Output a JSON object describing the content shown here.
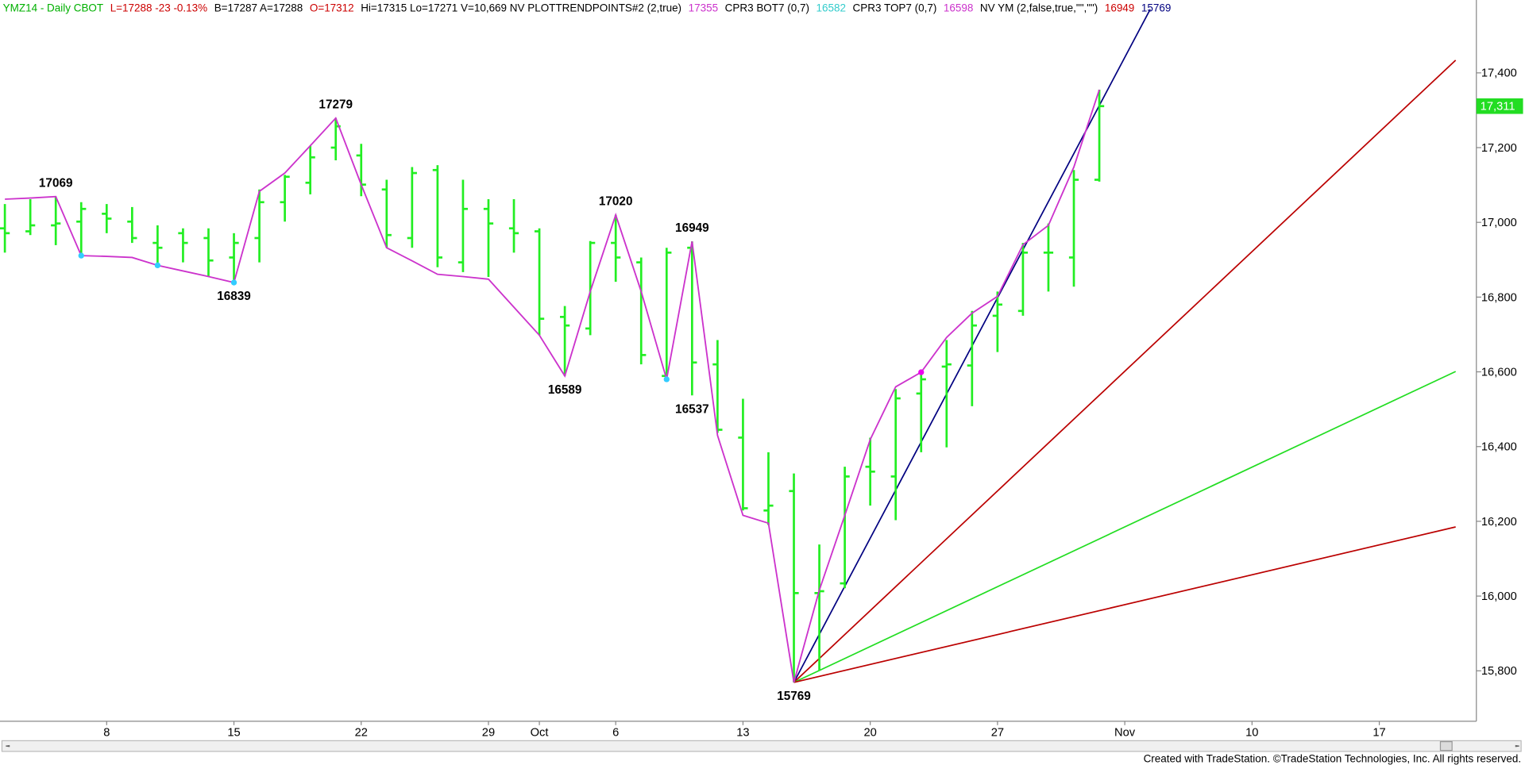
{
  "chart_data": {
    "type": "ohlc",
    "header": [
      {
        "text": "YMZ14 - Daily  CBOT",
        "color": "#00b000"
      },
      {
        "text": "L=17288  -23  -0.13%",
        "color": "#cc0000"
      },
      {
        "text": "B=17287  A=17288",
        "color": "#000000"
      },
      {
        "text": "O=17312",
        "color": "#cc0000"
      },
      {
        "text": "Hi=17315  Lo=17271  V=10,669  NV   PLOTTRENDPOINTS#2 (2,true)",
        "color": "#000000"
      },
      {
        "text": "17355",
        "color": "#cc33cc"
      },
      {
        "text": "CPR3 BOT7 (0,7)",
        "color": "#000000"
      },
      {
        "text": "16582",
        "color": "#33cccc"
      },
      {
        "text": "CPR3 TOP7 (0,7)",
        "color": "#000000"
      },
      {
        "text": "16598",
        "color": "#cc33cc"
      },
      {
        "text": "NV YM (2,false,true,\"\",\"\")",
        "color": "#000000"
      },
      {
        "text": "16949",
        "color": "#cc0000"
      },
      {
        "text": "15769",
        "color": "#000080"
      }
    ],
    "footer": "Created with TradeStation. ©TradeStation Technologies, Inc. All rights reserved.",
    "categories": [
      null,
      null,
      null,
      null,
      "8",
      null,
      null,
      null,
      null,
      "15",
      null,
      null,
      null,
      null,
      "22",
      null,
      null,
      null,
      null,
      "29",
      null,
      "Oct",
      null,
      null,
      "6",
      null,
      null,
      null,
      null,
      "13",
      null,
      null,
      null,
      null,
      "20",
      null,
      null,
      null,
      null,
      "27",
      null,
      null,
      null,
      null,
      "Nov",
      null,
      null,
      null,
      null,
      "10",
      null,
      null,
      null,
      null,
      "17",
      null,
      null,
      null
    ],
    "bar_color": "#22ee22",
    "open": [
      16984,
      16976,
      16992,
      17002,
      17023,
      17002,
      16945,
      16971,
      16958,
      16906,
      16958,
      17054,
      17106,
      17200,
      17179,
      17088,
      16958,
      17140,
      16893,
      17036,
      16984,
      16976,
      16747,
      16716,
      16945,
      16893,
      16589,
      16932,
      16620,
      16424,
      16229,
      16281,
      16008,
      16034,
      16346,
      16320,
      16542,
      16614,
      16617,
      16750,
      16763,
      16919,
      16906,
      17114,
      null,
      null,
      null,
      null,
      null,
      null,
      null,
      null,
      null,
      null,
      null,
      null,
      null,
      null
    ],
    "high": [
      17049,
      17062,
      17069,
      17054,
      17049,
      17041,
      16992,
      16984,
      16984,
      16971,
      17088,
      17127,
      17205,
      17279,
      17210,
      17114,
      17148,
      17153,
      17114,
      17062,
      17062,
      16984,
      16776,
      16950,
      17020,
      16906,
      16932,
      16949,
      16685,
      16528,
      16385,
      16328,
      16138,
      16346,
      16424,
      16554,
      16594,
      16685,
      16763,
      16815,
      16945,
      16997,
      17140,
      17355,
      null,
      null,
      null,
      null,
      null,
      null,
      null,
      null,
      null,
      null,
      null,
      null,
      null,
      null
    ],
    "low": [
      16919,
      16966,
      16939,
      16913,
      16971,
      16945,
      16880,
      16893,
      16854,
      16839,
      16893,
      17002,
      17075,
      17166,
      17070,
      16932,
      16932,
      16880,
      16867,
      16854,
      16919,
      16698,
      16589,
      16698,
      16841,
      16620,
      16580,
      16537,
      16437,
      16229,
      16190,
      15769,
      15800,
      16021,
      16242,
      16203,
      16385,
      16398,
      16508,
      16653,
      16750,
      16815,
      16828,
      17109,
      null,
      null,
      null,
      null,
      null,
      null,
      null,
      null,
      null,
      null,
      null,
      null,
      null,
      null
    ],
    "close": [
      16971,
      16992,
      16997,
      17036,
      17010,
      16958,
      16932,
      16945,
      16898,
      16945,
      17054,
      17122,
      17174,
      17257,
      17101,
      16966,
      17132,
      16906,
      17036,
      16997,
      16971,
      16742,
      16724,
      16945,
      16906,
      16645,
      16919,
      16625,
      16445,
      16235,
      16242,
      16008,
      16013,
      16320,
      16333,
      16529,
      16580,
      16620,
      16724,
      16780,
      16919,
      16919,
      17114,
      17311,
      null,
      null,
      null,
      null,
      null,
      null,
      null,
      null,
      null,
      null,
      null,
      null,
      null,
      null
    ],
    "trendpoints": {
      "color": "#cc33cc",
      "values": [
        17062,
        17065,
        17069,
        16911,
        16909,
        16906,
        16885,
        16870,
        16855,
        16839,
        17083,
        17132,
        17205,
        17279,
        17101,
        16932,
        16897,
        16861,
        16855,
        16848,
        16773,
        16698,
        16589,
        16815,
        17020,
        16815,
        16580,
        16949,
        16430,
        16216,
        16195,
        15769,
        16016,
        16216,
        16419,
        16560,
        16599,
        16692,
        16757,
        16802,
        16940,
        16992,
        17148,
        17355,
        null,
        null,
        null,
        null,
        null,
        null,
        null,
        null,
        null,
        null,
        null,
        null,
        null,
        null
      ]
    },
    "markers": [
      {
        "index": 3,
        "value": 16911,
        "color": "#33ccff"
      },
      {
        "index": 6,
        "value": 16885,
        "color": "#33ccff"
      },
      {
        "index": 9,
        "value": 16839,
        "color": "#33ccff"
      },
      {
        "index": 26,
        "value": 16580,
        "color": "#33ccff"
      },
      {
        "index": 36,
        "value": 16599,
        "color": "#ee00ee"
      }
    ],
    "pivots": [
      {
        "index": 2,
        "value": 17069,
        "position": "above"
      },
      {
        "index": 9,
        "value": 16839,
        "position": "below"
      },
      {
        "index": 13,
        "value": 17279,
        "position": "above"
      },
      {
        "index": 22,
        "value": 16589,
        "position": "below"
      },
      {
        "index": 24,
        "value": 17020,
        "position": "above"
      },
      {
        "index": 27,
        "value": 16949,
        "position": "above"
      },
      {
        "index": 27,
        "value": 16537,
        "position": "below"
      },
      {
        "index": 31,
        "value": 15769,
        "position": "below"
      }
    ],
    "fan_lines": [
      {
        "color": "#000080",
        "from": [
          31,
          15769
        ],
        "to": [
          45,
          17570
        ]
      },
      {
        "color": "#bb0000",
        "from": [
          31,
          15769
        ],
        "to": [
          57,
          17434
        ]
      },
      {
        "color": "#22dd22",
        "from": [
          31,
          15769
        ],
        "to": [
          57,
          16601
        ]
      },
      {
        "color": "#bb0000",
        "from": [
          31,
          15769
        ],
        "to": [
          57,
          16185
        ]
      }
    ],
    "last_price": {
      "value": 17311,
      "label": "17,311",
      "color": "#22dd22"
    },
    "ylim": [
      15665,
      17595
    ],
    "yticks": [
      {
        "value": 15800,
        "label": "15,800"
      },
      {
        "value": 16000,
        "label": "16,000"
      },
      {
        "value": 16200,
        "label": "16,200"
      },
      {
        "value": 16400,
        "label": "16,400"
      },
      {
        "value": 16600,
        "label": "16,600"
      },
      {
        "value": 16800,
        "label": "16,800"
      },
      {
        "value": 17000,
        "label": "17,000"
      },
      {
        "value": 17200,
        "label": "17,200"
      },
      {
        "value": 17400,
        "label": "17,400"
      }
    ],
    "grid": false
  }
}
